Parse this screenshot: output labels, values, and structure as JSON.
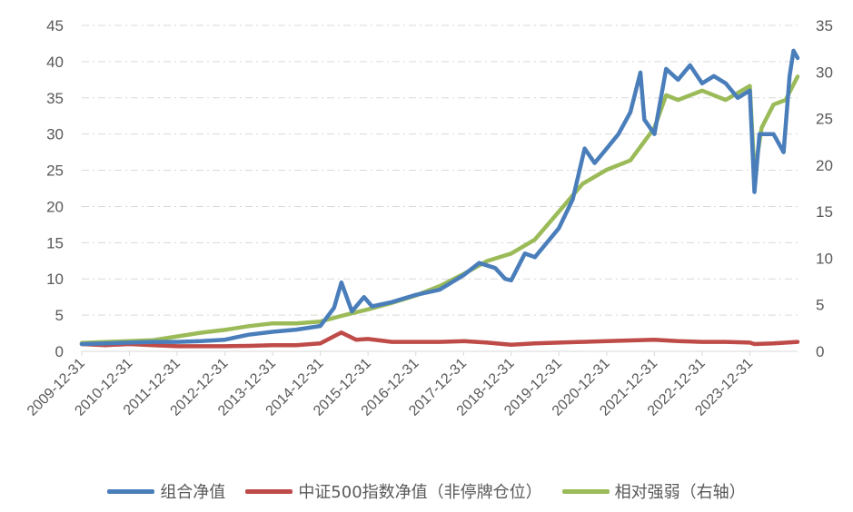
{
  "chart_data": {
    "type": "line",
    "x_tick_labels": [
      "2009-12-31",
      "2010-12-31",
      "2011-12-31",
      "2012-12-31",
      "2013-12-31",
      "2014-12-31",
      "2015-12-31",
      "2016-12-31",
      "2017-12-31",
      "2018-12-31",
      "2019-12-31",
      "2020-12-31",
      "2021-12-31",
      "2022-12-31",
      "2023-12-31"
    ],
    "x_start": "2009-12-31",
    "x_end": "2024-12-31",
    "left_axis": {
      "min": 0,
      "max": 45,
      "ticks": [
        0,
        5,
        10,
        15,
        20,
        25,
        30,
        35,
        40,
        45
      ]
    },
    "right_axis": {
      "min": 0,
      "max": 35,
      "ticks": [
        0,
        5,
        10,
        15,
        20,
        25,
        30,
        35
      ]
    },
    "grid": "horizontal-dashed",
    "legend_position": "bottom",
    "series": [
      {
        "name": "组合净值",
        "axis": "left",
        "color": "#4a7ebb",
        "points": [
          [
            "2009-12-31",
            1.0
          ],
          [
            "2010-06-30",
            1.1
          ],
          [
            "2010-12-31",
            1.2
          ],
          [
            "2011-06-30",
            1.3
          ],
          [
            "2011-12-31",
            1.3
          ],
          [
            "2012-06-30",
            1.4
          ],
          [
            "2012-12-31",
            1.6
          ],
          [
            "2013-06-30",
            2.3
          ],
          [
            "2013-12-31",
            2.7
          ],
          [
            "2014-06-30",
            3.0
          ],
          [
            "2014-12-31",
            3.5
          ],
          [
            "2015-04-15",
            6.0
          ],
          [
            "2015-06-10",
            9.5
          ],
          [
            "2015-08-30",
            5.5
          ],
          [
            "2015-11-30",
            7.5
          ],
          [
            "2016-01-31",
            6.2
          ],
          [
            "2016-06-30",
            6.8
          ],
          [
            "2016-12-31",
            7.8
          ],
          [
            "2017-06-30",
            8.5
          ],
          [
            "2017-12-31",
            10.5
          ],
          [
            "2018-04-30",
            12.2
          ],
          [
            "2018-08-31",
            11.5
          ],
          [
            "2018-11-15",
            10.0
          ],
          [
            "2018-12-31",
            9.8
          ],
          [
            "2019-04-15",
            13.5
          ],
          [
            "2019-06-30",
            13.0
          ],
          [
            "2019-12-31",
            17.0
          ],
          [
            "2020-04-15",
            21.0
          ],
          [
            "2020-07-15",
            28.0
          ],
          [
            "2020-09-30",
            26.0
          ],
          [
            "2020-12-31",
            28.0
          ],
          [
            "2021-03-31",
            30.0
          ],
          [
            "2021-06-30",
            33.0
          ],
          [
            "2021-09-15",
            38.5
          ],
          [
            "2021-10-15",
            32.0
          ],
          [
            "2021-12-31",
            30.0
          ],
          [
            "2022-03-31",
            39.0
          ],
          [
            "2022-06-30",
            37.5
          ],
          [
            "2022-09-30",
            39.5
          ],
          [
            "2022-12-31",
            37.0
          ],
          [
            "2023-03-31",
            38.0
          ],
          [
            "2023-06-30",
            37.0
          ],
          [
            "2023-09-30",
            35.0
          ],
          [
            "2023-12-31",
            36.0
          ],
          [
            "2024-02-05",
            22.0
          ],
          [
            "2024-03-15",
            30.0
          ],
          [
            "2024-06-30",
            30.0
          ],
          [
            "2024-09-15",
            27.5
          ],
          [
            "2024-10-31",
            38.0
          ],
          [
            "2024-11-30",
            41.5
          ],
          [
            "2024-12-31",
            40.5
          ]
        ]
      },
      {
        "name": "中证500指数净值（非停牌仓位）",
        "axis": "left",
        "color": "#be4b48",
        "points": [
          [
            "2009-12-31",
            1.0
          ],
          [
            "2010-06-30",
            0.85
          ],
          [
            "2010-12-31",
            1.0
          ],
          [
            "2011-06-30",
            0.85
          ],
          [
            "2011-12-31",
            0.7
          ],
          [
            "2012-06-30",
            0.7
          ],
          [
            "2012-12-31",
            0.7
          ],
          [
            "2013-06-30",
            0.75
          ],
          [
            "2013-12-31",
            0.85
          ],
          [
            "2014-06-30",
            0.85
          ],
          [
            "2014-12-31",
            1.1
          ],
          [
            "2015-06-10",
            2.6
          ],
          [
            "2015-09-30",
            1.6
          ],
          [
            "2015-12-31",
            1.7
          ],
          [
            "2016-06-30",
            1.3
          ],
          [
            "2016-12-31",
            1.3
          ],
          [
            "2017-06-30",
            1.3
          ],
          [
            "2017-12-31",
            1.4
          ],
          [
            "2018-06-30",
            1.2
          ],
          [
            "2018-12-31",
            0.9
          ],
          [
            "2019-06-30",
            1.1
          ],
          [
            "2019-12-31",
            1.2
          ],
          [
            "2020-06-30",
            1.3
          ],
          [
            "2020-12-31",
            1.4
          ],
          [
            "2021-06-30",
            1.5
          ],
          [
            "2021-12-31",
            1.6
          ],
          [
            "2022-06-30",
            1.4
          ],
          [
            "2022-12-31",
            1.3
          ],
          [
            "2023-06-30",
            1.3
          ],
          [
            "2023-12-31",
            1.2
          ],
          [
            "2024-02-05",
            1.0
          ],
          [
            "2024-06-30",
            1.1
          ],
          [
            "2024-12-31",
            1.3
          ]
        ]
      },
      {
        "name": "相对强弱（右轴）",
        "axis": "right",
        "color": "#9bbb59",
        "points": [
          [
            "2009-12-31",
            0.9
          ],
          [
            "2010-12-31",
            1.1
          ],
          [
            "2011-06-30",
            1.2
          ],
          [
            "2011-12-31",
            1.6
          ],
          [
            "2012-06-30",
            2.0
          ],
          [
            "2012-12-31",
            2.3
          ],
          [
            "2013-06-30",
            2.7
          ],
          [
            "2013-12-31",
            3.0
          ],
          [
            "2014-06-30",
            3.0
          ],
          [
            "2014-12-31",
            3.2
          ],
          [
            "2015-06-10",
            3.8
          ],
          [
            "2015-12-31",
            4.5
          ],
          [
            "2016-06-30",
            5.2
          ],
          [
            "2016-12-31",
            6.0
          ],
          [
            "2017-06-30",
            7.0
          ],
          [
            "2017-12-31",
            8.3
          ],
          [
            "2018-06-30",
            9.7
          ],
          [
            "2018-12-31",
            10.5
          ],
          [
            "2019-06-30",
            12.0
          ],
          [
            "2019-12-31",
            15.0
          ],
          [
            "2020-06-30",
            18.0
          ],
          [
            "2020-12-31",
            19.5
          ],
          [
            "2021-06-30",
            20.5
          ],
          [
            "2021-12-31",
            24.0
          ],
          [
            "2022-03-31",
            27.5
          ],
          [
            "2022-06-30",
            27.0
          ],
          [
            "2022-12-31",
            28.0
          ],
          [
            "2023-06-30",
            27.0
          ],
          [
            "2023-12-31",
            28.5
          ],
          [
            "2024-02-05",
            19.0
          ],
          [
            "2024-03-31",
            24.0
          ],
          [
            "2024-06-30",
            26.5
          ],
          [
            "2024-09-30",
            27.0
          ],
          [
            "2024-12-31",
            29.5
          ]
        ]
      }
    ]
  }
}
